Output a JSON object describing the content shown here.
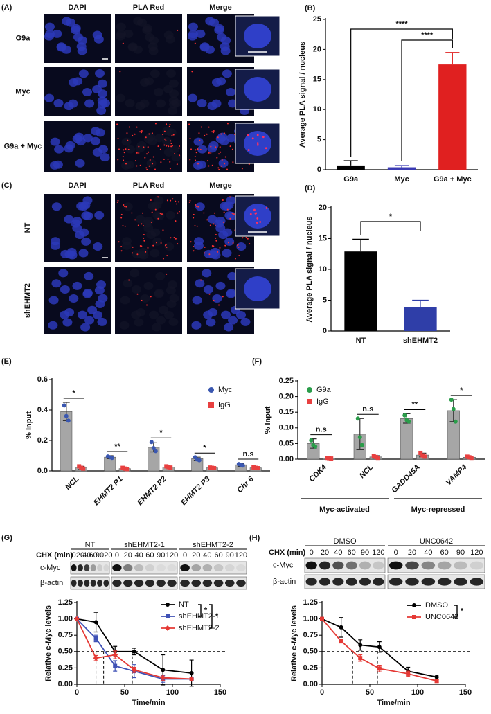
{
  "micrographs": [
    {
      "panel": "(A)",
      "columns": [
        "DAPI",
        "PLA Red",
        "Merge"
      ],
      "rows": [
        "G9a",
        "Myc",
        "G9a + Myc"
      ]
    },
    {
      "panel": "(C)",
      "columns": [
        "DAPI",
        "PLA Red",
        "Merge"
      ],
      "rows": [
        "NT",
        "shEHMT2"
      ]
    }
  ],
  "blots": [
    {
      "cx_label": "CHX (min)",
      "groups": [
        "NT",
        "shEHMT2-1",
        "shEHMT2-2"
      ],
      "times": [
        0,
        20,
        40,
        60,
        90,
        120
      ],
      "rows": [
        "c-Myc",
        "β-actin"
      ]
    },
    {
      "cx_label": "CHX (min)",
      "groups": [
        "DMSO",
        "UNC0642"
      ],
      "times": [
        0,
        20,
        40,
        60,
        90,
        120
      ],
      "rows": [
        "c-Myc",
        "β-actin"
      ]
    }
  ],
  "chart_data": [
    {
      "panel": "(B)",
      "type": "bar",
      "ylabel": "Average PLA signal / nucleus",
      "categories": [
        "G9a",
        "Myc",
        "G9a + Myc"
      ],
      "values": [
        0.7,
        0.4,
        17.5
      ],
      "errors": [
        0.8,
        0.3,
        2.0
      ],
      "colors": [
        "#000000",
        "#3b3bb3",
        "#e02020"
      ],
      "ylim": [
        0,
        25
      ],
      "yticks": [
        0,
        5,
        10,
        15,
        20,
        25
      ],
      "annotations": [
        "****",
        "****"
      ]
    },
    {
      "panel": "(D)",
      "type": "bar",
      "ylabel": "Average PLA signal / nucleus",
      "categories": [
        "NT",
        "shEHMT2"
      ],
      "values": [
        12.9,
        3.9
      ],
      "errors": [
        2.0,
        1.1
      ],
      "colors": [
        "#000000",
        "#2f3ea8"
      ],
      "ylim": [
        0,
        20
      ],
      "yticks": [
        0,
        5,
        10,
        15,
        20
      ],
      "annotations": [
        "*"
      ]
    },
    {
      "panel": "(E)",
      "type": "bar",
      "ylabel": "% Input",
      "categories": [
        "NCL",
        "EHMT2 P1",
        "EHMT2 P2",
        "EHMT2 P3",
        "Chr 6"
      ],
      "bar_color": "#a6a6a6",
      "series": [
        {
          "name": "Myc",
          "color": "#3a57b0",
          "marker": "circle",
          "values": [
            0.39,
            0.09,
            0.155,
            0.08,
            0.04
          ],
          "errors": [
            0.06,
            0.01,
            0.03,
            0.01,
            0.01
          ],
          "points": [
            [
              0.43,
              0.36,
              0.33
            ],
            [
              0.095,
              0.09,
              0.085
            ],
            [
              0.19,
              0.15,
              0.13
            ],
            [
              0.09,
              0.075,
              0.07
            ],
            [
              0.045,
              0.04,
              0.035
            ]
          ]
        },
        {
          "name": "IgG",
          "color": "#e84040",
          "marker": "square",
          "values": [
            0.02,
            0.015,
            0.025,
            0.02,
            0.02
          ],
          "errors": [
            0.01,
            0.005,
            0.005,
            0.005,
            0.005
          ],
          "points": [
            [
              0.03,
              0.02,
              0.015
            ],
            [
              0.02,
              0.015,
              0.012
            ],
            [
              0.03,
              0.025,
              0.022
            ],
            [
              0.022,
              0.02,
              0.018
            ],
            [
              0.023,
              0.02,
              0.018
            ]
          ]
        }
      ],
      "ylim": [
        0,
        0.6
      ],
      "yticks": [
        {
          "value": 0,
          "label": "0.0"
        },
        0.2,
        0.4,
        0.6
      ],
      "annotations": [
        "*",
        "**",
        "*",
        "*",
        "n.s"
      ],
      "legend": "upper right"
    },
    {
      "panel": "(F)",
      "type": "bar",
      "ylabel": "% Input",
      "categories": [
        "CDK4",
        "NCL",
        "GADD45A",
        "VAMP4"
      ],
      "bar_color": "#a6a6a6",
      "series": [
        {
          "name": "G9a",
          "color": "#2a9d4a",
          "marker": "circle",
          "values": [
            0.05,
            0.08,
            0.13,
            0.155
          ],
          "errors": [
            0.015,
            0.05,
            0.015,
            0.035
          ],
          "points": [
            [
              0.06,
              0.045,
              0.04
            ],
            [
              0.13,
              0.07,
              0.045
            ],
            [
              0.14,
              0.125,
              0.12
            ],
            [
              0.19,
              0.16,
              0.12
            ]
          ]
        },
        {
          "name": "IgG",
          "color": "#e84040",
          "marker": "square",
          "values": [
            0.003,
            0.007,
            0.013,
            0.006
          ],
          "errors": [
            0.002,
            0.004,
            0.006,
            0.003
          ],
          "points": [
            [
              0.004,
              0.003,
              0.002
            ],
            [
              0.01,
              0.007,
              0.004
            ],
            [
              0.02,
              0.012,
              0.008
            ],
            [
              0.008,
              0.006,
              0.004
            ]
          ]
        }
      ],
      "ylim": [
        0,
        0.25
      ],
      "yticks": [
        {
          "value": 0,
          "label": "0.00"
        },
        {
          "value": 0.05,
          "label": "0.05"
        },
        {
          "value": 0.1,
          "label": "0.10"
        },
        {
          "value": 0.15,
          "label": "0.15"
        },
        {
          "value": 0.2,
          "label": "0.20"
        },
        {
          "value": 0.25,
          "label": "0.25"
        }
      ],
      "annotations": [
        "n.s",
        "n.s",
        "**",
        "*"
      ],
      "groups": [
        "Myc-activated",
        "Myc-repressed"
      ],
      "legend": "upper left"
    },
    {
      "panel": "(G)",
      "type": "line",
      "xlabel": "Time/min",
      "ylabel": "Relative c-Myc levels",
      "x": [
        0,
        20,
        40,
        60,
        90,
        120
      ],
      "series": [
        {
          "name": "NT",
          "color": "#000000",
          "marker": "circle",
          "values": [
            1.0,
            0.95,
            0.5,
            0.5,
            0.22,
            0.17
          ],
          "errors": [
            0,
            0.15,
            0.08,
            0.05,
            0.23,
            0.2
          ]
        },
        {
          "name": "shEHMT2-1",
          "color": "#3f51b5",
          "marker": "square",
          "values": [
            1.0,
            0.7,
            0.28,
            0.2,
            0.08,
            0.08
          ],
          "errors": [
            0,
            0.05,
            0.08,
            0.1,
            0.05,
            0.03
          ]
        },
        {
          "name": "shEHMT2-2",
          "color": "#e53935",
          "marker": "diamond",
          "values": [
            1.0,
            0.4,
            0.45,
            0.22,
            0.1,
            0.08
          ],
          "errors": [
            0,
            0.04,
            0.06,
            0.04,
            0.04,
            0.03
          ]
        }
      ],
      "xlim": [
        0,
        150
      ],
      "xticks": [
        0,
        50,
        100,
        150
      ],
      "ylim": [
        0,
        1.25
      ],
      "yticks": [
        {
          "value": 0,
          "label": "0.00"
        },
        {
          "value": 0.25,
          "label": "0.25"
        },
        {
          "value": 0.5,
          "label": "0.50"
        },
        {
          "value": 0.75,
          "label": "0.75"
        },
        {
          "value": 1,
          "label": "1.00"
        },
        {
          "value": 1.25,
          "label": "1.25"
        }
      ],
      "reference_y": 0.5,
      "half_lives": [
        20,
        28,
        58
      ],
      "annotations": [
        "*",
        "*"
      ],
      "legend": "upper right"
    },
    {
      "panel": "(H)",
      "type": "line",
      "xlabel": "Time/min",
      "ylabel": "Relative c-Myc levels",
      "x": [
        0,
        20,
        40,
        60,
        90,
        120
      ],
      "series": [
        {
          "name": "DMSO",
          "color": "#000000",
          "marker": "circle",
          "values": [
            1.0,
            0.87,
            0.6,
            0.57,
            0.2,
            0.11
          ],
          "errors": [
            0,
            0.15,
            0.08,
            0.08,
            0.06,
            0.03
          ]
        },
        {
          "name": "UNC0642",
          "color": "#e53935",
          "marker": "square",
          "values": [
            1.0,
            0.66,
            0.4,
            0.24,
            0.16,
            0.05
          ],
          "errors": [
            0,
            0.03,
            0.05,
            0.05,
            0.04,
            0.02
          ]
        }
      ],
      "xlim": [
        0,
        150
      ],
      "xticks": [
        0,
        50,
        100,
        150
      ],
      "ylim": [
        0,
        1.25
      ],
      "yticks": [
        {
          "value": 0,
          "label": "0.00"
        },
        {
          "value": 0.25,
          "label": "0.25"
        },
        {
          "value": 0.5,
          "label": "0.50"
        },
        {
          "value": 0.75,
          "label": "0.75"
        },
        {
          "value": 1,
          "label": "1.00"
        },
        {
          "value": 1.25,
          "label": "1.25"
        }
      ],
      "reference_y": 0.5,
      "half_lives": [
        32,
        58
      ],
      "annotations": [
        "*"
      ],
      "legend": "upper right"
    }
  ]
}
